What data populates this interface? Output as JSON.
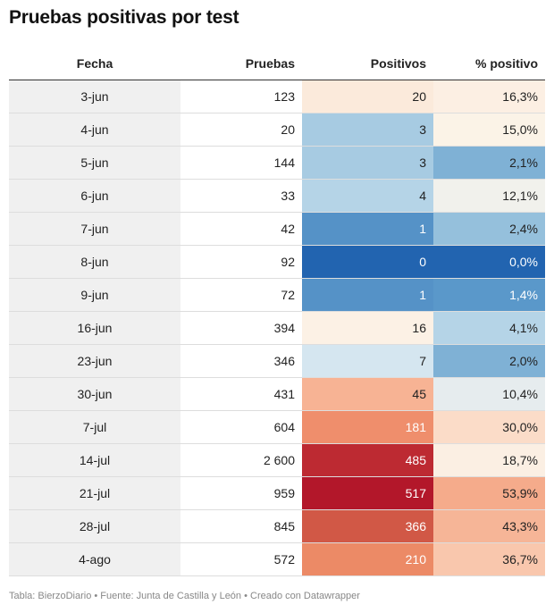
{
  "title": "Pruebas positivas por test",
  "columns": {
    "fecha": "Fecha",
    "pruebas": "Pruebas",
    "positivos": "Positivos",
    "pct": "% positivo"
  },
  "rows": [
    {
      "fecha": "3-jun",
      "pruebas": "123",
      "positivos": "20",
      "pct": "16,3%",
      "pos_bg": "#fbeadb",
      "pos_fg": "#222222",
      "pct_bg": "#fcefe3",
      "pct_fg": "#222222"
    },
    {
      "fecha": "4-jun",
      "pruebas": "20",
      "positivos": "3",
      "pct": "15,0%",
      "pos_bg": "#a7cbe2",
      "pos_fg": "#222222",
      "pct_bg": "#fbf3e7",
      "pct_fg": "#222222"
    },
    {
      "fecha": "5-jun",
      "pruebas": "144",
      "positivos": "3",
      "pct": "2,1%",
      "pos_bg": "#a7cbe2",
      "pos_fg": "#222222",
      "pct_bg": "#7fb1d5",
      "pct_fg": "#222222"
    },
    {
      "fecha": "6-jun",
      "pruebas": "33",
      "positivos": "4",
      "pct": "12,1%",
      "pos_bg": "#b5d4e7",
      "pos_fg": "#222222",
      "pct_bg": "#f1f1ec",
      "pct_fg": "#222222"
    },
    {
      "fecha": "7-jun",
      "pruebas": "42",
      "positivos": "1",
      "pct": "2,4%",
      "pos_bg": "#5592c7",
      "pos_fg": "#ffffff",
      "pct_bg": "#95c0dc",
      "pct_fg": "#222222"
    },
    {
      "fecha": "8-jun",
      "pruebas": "92",
      "positivos": "0",
      "pct": "0,0%",
      "pos_bg": "#2264b0",
      "pos_fg": "#ffffff",
      "pct_bg": "#2264b0",
      "pct_fg": "#ffffff"
    },
    {
      "fecha": "9-jun",
      "pruebas": "72",
      "positivos": "1",
      "pct": "1,4%",
      "pos_bg": "#5592c7",
      "pos_fg": "#ffffff",
      "pct_bg": "#5a98ca",
      "pct_fg": "#ffffff"
    },
    {
      "fecha": "16-jun",
      "pruebas": "394",
      "positivos": "16",
      "pct": "4,1%",
      "pos_bg": "#fcf1e5",
      "pos_fg": "#222222",
      "pct_bg": "#b5d4e7",
      "pct_fg": "#222222"
    },
    {
      "fecha": "23-jun",
      "pruebas": "346",
      "positivos": "7",
      "pct": "2,0%",
      "pos_bg": "#d5e6f0",
      "pos_fg": "#222222",
      "pct_bg": "#7fb1d5",
      "pct_fg": "#222222"
    },
    {
      "fecha": "30-jun",
      "pruebas": "431",
      "positivos": "45",
      "pct": "10,4%",
      "pos_bg": "#f7b394",
      "pos_fg": "#222222",
      "pct_bg": "#e6ecee",
      "pct_fg": "#222222"
    },
    {
      "fecha": "7-jul",
      "pruebas": "604",
      "positivos": "181",
      "pct": "30,0%",
      "pos_bg": "#ef8e6c",
      "pos_fg": "#ffffff",
      "pct_bg": "#fbdcc8",
      "pct_fg": "#222222"
    },
    {
      "fecha": "14-jul",
      "pruebas": "2 600",
      "positivos": "485",
      "pct": "18,7%",
      "pos_bg": "#bd2a32",
      "pos_fg": "#ffffff",
      "pct_bg": "#fbefe3",
      "pct_fg": "#222222"
    },
    {
      "fecha": "21-jul",
      "pruebas": "959",
      "positivos": "517",
      "pct": "53,9%",
      "pos_bg": "#b3172a",
      "pos_fg": "#ffffff",
      "pct_bg": "#f5ab8b",
      "pct_fg": "#222222"
    },
    {
      "fecha": "28-jul",
      "pruebas": "845",
      "positivos": "366",
      "pct": "43,3%",
      "pos_bg": "#d15846",
      "pos_fg": "#ffffff",
      "pct_bg": "#f6b597",
      "pct_fg": "#222222"
    },
    {
      "fecha": "4-ago",
      "pruebas": "572",
      "positivos": "210",
      "pct": "36,7%",
      "pos_bg": "#ec8a66",
      "pos_fg": "#ffffff",
      "pct_bg": "#f9c7ad",
      "pct_fg": "#222222"
    }
  ],
  "footer": "Tabla: BierzoDiario • Fuente: Junta de Castilla y León • Creado con Datawrapper"
}
